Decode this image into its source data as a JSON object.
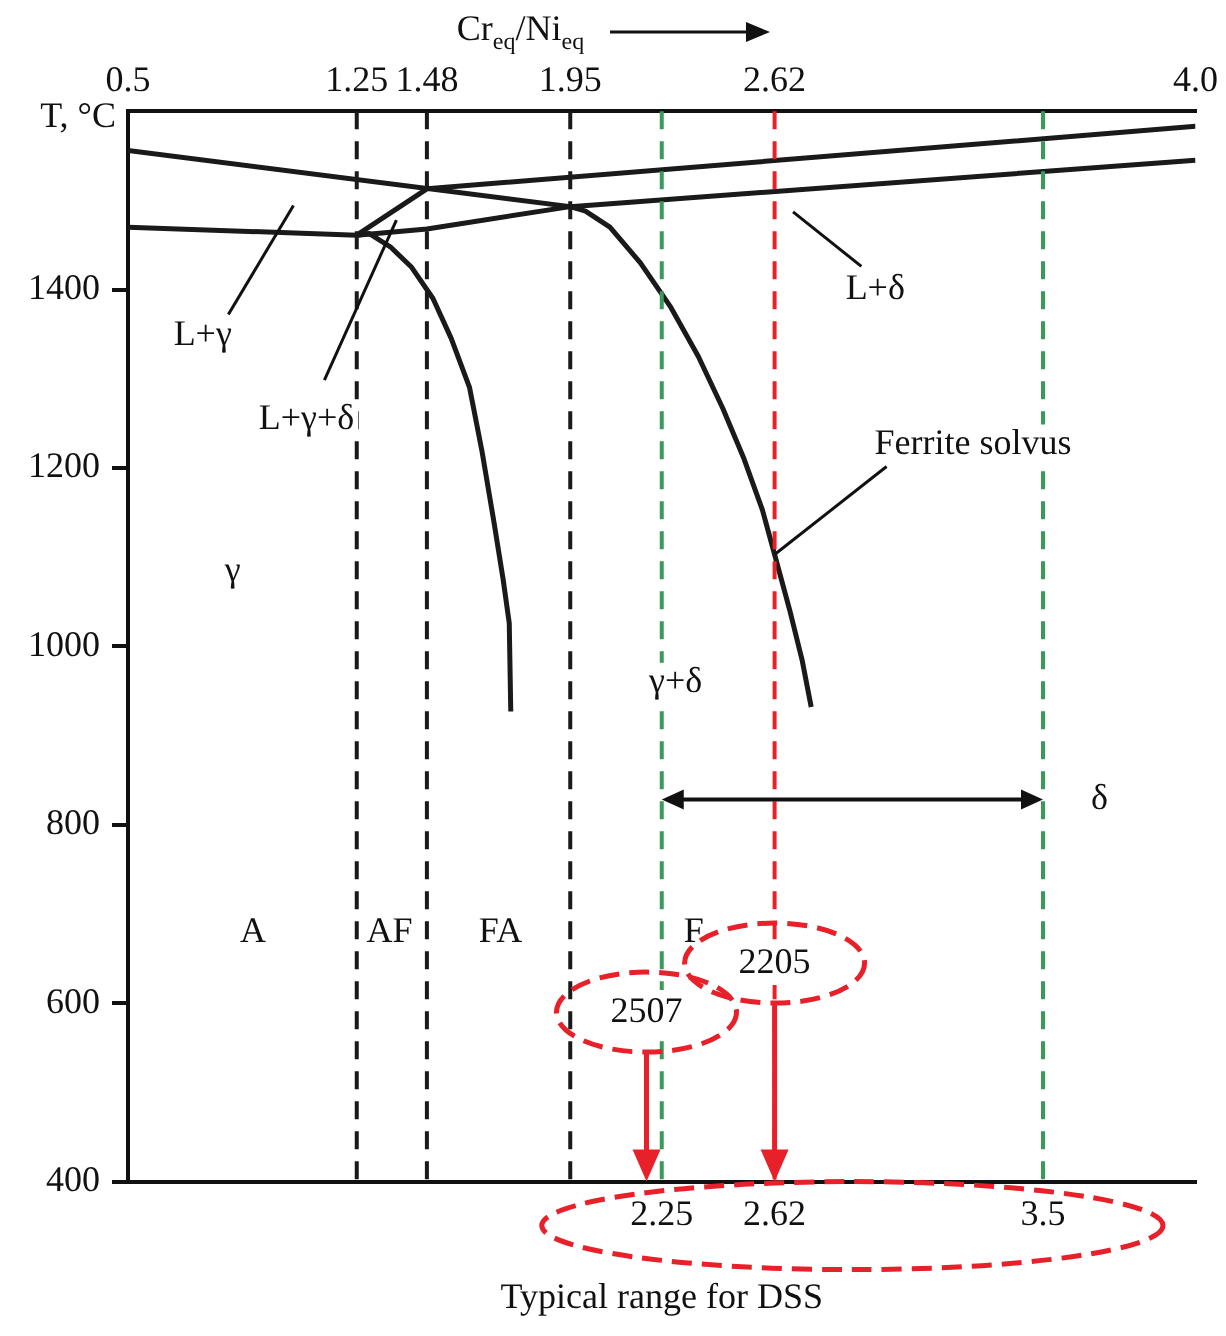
{
  "chart_data": {
    "type": "line",
    "x2label": "Cr$_{eq}$/Ni$_{eq}$",
    "xlabel": "Typical range for DSS",
    "ylabel": "T, °C",
    "xlim": [
      0.5,
      4.0
    ],
    "xticks": [
      2.25,
      2.62,
      3.5
    ],
    "x2lim": [
      0.5,
      4.0
    ],
    "x2ticks": [
      0.5,
      1.25,
      1.48,
      1.95,
      2.62,
      {
        "value": 4,
        "label": "4.0"
      }
    ],
    "ylim": [
      400,
      1600
    ],
    "yticks": [
      400,
      600,
      800,
      1000,
      1200,
      1400
    ],
    "marker": "none",
    "legend": false,
    "series": [
      {
        "color": "#1a1a1a",
        "x": [
          1.25,
          1.48,
          4.0
        ],
        "values": [
          1461,
          1513,
          1583
        ]
      },
      {
        "color": "#1a1a1a",
        "x": [
          0.5,
          1.95,
          2.0,
          2.08,
          2.18,
          2.28,
          2.37,
          2.45,
          2.52,
          2.58,
          2.62,
          2.67,
          2.71,
          2.74
        ],
        "values": [
          1556,
          1493,
          1488,
          1470,
          1430,
          1380,
          1325,
          1267,
          1210,
          1153,
          1103,
          1040,
          985,
          932
        ]
      },
      {
        "color": "#1a1a1a",
        "x": [
          0.5,
          1.25,
          1.48,
          1.95,
          4.0
        ],
        "values": [
          1470,
          1461,
          1468,
          1493,
          1545
        ]
      },
      {
        "color": "#1a1a1a",
        "x": [
          1.25,
          1.29,
          1.36,
          1.43,
          1.5,
          1.56,
          1.62,
          1.66,
          1.7,
          1.73,
          1.75,
          1.755
        ],
        "values": [
          1461,
          1463,
          1448,
          1425,
          1390,
          1345,
          1290,
          1220,
          1139,
          1075,
          1026,
          927
        ]
      }
    ],
    "ref_lines": [
      {
        "axis": "x",
        "value": 1.25,
        "color": "#1a1a1a",
        "line_style": "dashed"
      },
      {
        "axis": "x",
        "value": 1.48,
        "color": "#1a1a1a",
        "line_style": "dashed"
      },
      {
        "axis": "x",
        "value": 1.95,
        "color": "#1a1a1a",
        "line_style": "dashed"
      },
      {
        "axis": "x",
        "value": 2.25,
        "color": "#3a9a5a",
        "line_style": "dashed"
      },
      {
        "axis": "x",
        "value": 3.5,
        "color": "#3a9a5a",
        "line_style": "dashed"
      },
      {
        "axis": "x",
        "value": 2.62,
        "color": "#e8202a",
        "line_style": "dashed"
      }
    ],
    "annotations": [
      "L+γ",
      {
        "text": "L+γ+δ",
        "x": 1.38,
        "y": 1478
      },
      "L+δ",
      {
        "text": "Ferrite solvus",
        "x": 2.62,
        "y": 1103
      },
      "γ",
      "γ+δ",
      "δ",
      "A",
      "AF",
      "FA",
      "F",
      {
        "text": "2507",
        "x": 2.2,
        "y": 590
      },
      {
        "text": "2205",
        "x": 2.62,
        "y": 645
      }
    ]
  }
}
